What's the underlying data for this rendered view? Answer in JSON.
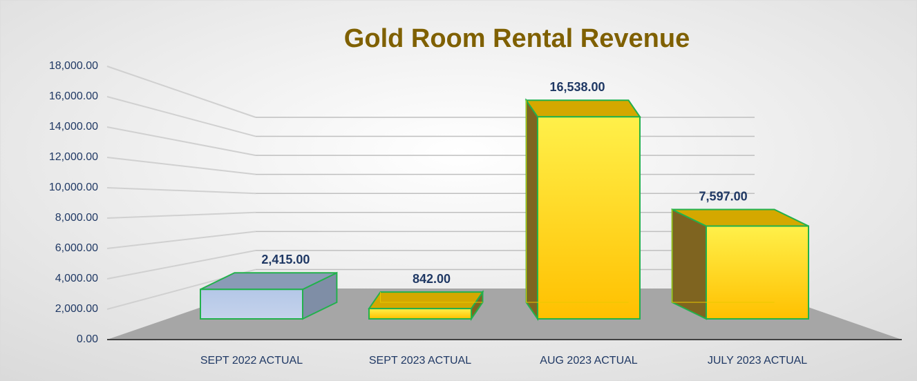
{
  "chart_data": {
    "type": "bar3d",
    "title": "Gold Room Rental Revenue",
    "categories": [
      "SEPT 2022 ACTUAL",
      "SEPT 2023 ACTUAL",
      "AUG 2023 ACTUAL",
      "JULY 2023 ACTUAL"
    ],
    "values": [
      2415,
      842,
      16538,
      7597
    ],
    "value_labels": [
      "2,415.00",
      "842.00",
      "16,538.00",
      "7,597.00"
    ],
    "colors": [
      "#b4c7e7",
      "#ffc000",
      "#ffc000",
      "#ffc000"
    ],
    "ylim": [
      0,
      18000
    ],
    "yticks": [
      {
        "value": 0,
        "label": "0.00"
      },
      {
        "value": 2000,
        "label": "2,000.00"
      },
      {
        "value": 4000,
        "label": "4,000.00"
      },
      {
        "value": 6000,
        "label": "6,000.00"
      },
      {
        "value": 8000,
        "label": "8,000.00"
      },
      {
        "value": 10000,
        "label": "10,000.00"
      },
      {
        "value": 12000,
        "label": "12,000.00"
      },
      {
        "value": 14000,
        "label": "14,000.00"
      },
      {
        "value": 16000,
        "label": "16,000.00"
      },
      {
        "value": 18000,
        "label": "18,000.00"
      }
    ],
    "grid": true
  }
}
